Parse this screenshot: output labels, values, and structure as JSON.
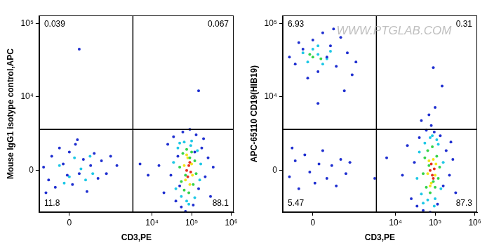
{
  "chart_data": [
    {
      "type": "scatter",
      "x_label": "CD3,PE",
      "y_label": "Mouse IgG1 isotype control,APC",
      "xlim": [
        -460,
        1150000
      ],
      "ylim": [
        -3400,
        130000
      ],
      "xticks": [
        0,
        {
          "value": 10000,
          "label": "10⁴"
        },
        {
          "value": 100000,
          "label": "10⁵"
        },
        {
          "value": 1000000,
          "label": "10⁶"
        }
      ],
      "yticks": [
        0,
        {
          "value": 10000,
          "label": "10⁴"
        },
        {
          "value": 100000,
          "label": "10⁵"
        }
      ],
      "grid": false,
      "gates": {
        "x": 3300,
        "y": 3300
      },
      "quadrant_percents": {
        "upper_left": 0.039,
        "upper_right": 0.067,
        "lower_left": 11.8,
        "lower_right": 88.1
      },
      "series": [
        {
          "color": "#1f2fd0",
          "points": [
            [
              -350,
              200
            ],
            [
              -250,
              -600
            ],
            [
              -200,
              900
            ],
            [
              -150,
              -1100
            ],
            [
              -100,
              1500
            ],
            [
              -60,
              400
            ],
            [
              -20,
              -300
            ],
            [
              0,
              1200
            ],
            [
              30,
              -900
            ],
            [
              60,
              1800
            ],
            [
              100,
              -200
            ],
            [
              150,
              700
            ],
            [
              200,
              -1400
            ],
            [
              260,
              300
            ],
            [
              330,
              1100
            ],
            [
              420,
              -500
            ],
            [
              520,
              600
            ],
            [
              700,
              -200
            ],
            [
              900,
              900
            ],
            [
              1300,
              300
            ],
            [
              -300,
              -1500
            ],
            [
              80,
              2200
            ],
            [
              15000,
              300
            ],
            [
              20000,
              -1500
            ],
            [
              25000,
              1800
            ],
            [
              30000,
              -300
            ],
            [
              35000,
              2500
            ],
            [
              40000,
              -2200
            ],
            [
              45000,
              900
            ],
            [
              55000,
              -2800
            ],
            [
              60000,
              3000
            ],
            [
              70000,
              -3300
            ],
            [
              90000,
              3300
            ],
            [
              110000,
              -2600
            ],
            [
              130000,
              2700
            ],
            [
              150000,
              -1200
            ],
            [
              180000,
              1500
            ],
            [
              220000,
              -400
            ],
            [
              260000,
              800
            ],
            [
              300000,
              -1800
            ],
            [
              350000,
              200
            ],
            [
              50000,
              -1000
            ],
            [
              120000,
              1200
            ],
            [
              200000,
              2300
            ],
            [
              5000,
              400
            ],
            [
              8000,
              -300
            ],
            [
              100,
              45000
            ],
            [
              150000,
              12000
            ]
          ]
        },
        {
          "color": "#1ec8e6",
          "points": [
            [
              -100,
              300
            ],
            [
              0,
              -400
            ],
            [
              50,
              800
            ],
            [
              120,
              100
            ],
            [
              180,
              -600
            ],
            [
              250,
              900
            ],
            [
              -50,
              -800
            ],
            [
              300,
              -200
            ],
            [
              35000,
              500
            ],
            [
              40000,
              -1200
            ],
            [
              45000,
              1500
            ],
            [
              55000,
              -1800
            ],
            [
              65000,
              2000
            ],
            [
              75000,
              -2200
            ],
            [
              100000,
              2100
            ],
            [
              120000,
              -1900
            ],
            [
              140000,
              1300
            ],
            [
              160000,
              -600
            ],
            [
              170000,
              400
            ],
            [
              50000,
              1900
            ],
            [
              85000,
              -2500
            ],
            [
              95000,
              1700
            ]
          ]
        },
        {
          "color": "#34d34a",
          "points": [
            [
              50000,
              200
            ],
            [
              55000,
              -700
            ],
            [
              60000,
              1100
            ],
            [
              65000,
              -1300
            ],
            [
              75000,
              1400
            ],
            [
              85000,
              -1500
            ],
            [
              100000,
              1200
            ],
            [
              110000,
              -900
            ],
            [
              120000,
              600
            ],
            [
              130000,
              -200
            ],
            [
              70000,
              -300
            ],
            [
              90000,
              800
            ]
          ]
        },
        {
          "color": "#f2e41a",
          "points": [
            [
              65000,
              300
            ],
            [
              70000,
              -600
            ],
            [
              80000,
              800
            ],
            [
              90000,
              -900
            ],
            [
              100000,
              400
            ],
            [
              75000,
              1000
            ],
            [
              105000,
              -300
            ]
          ]
        },
        {
          "color": "#e5301f",
          "points": [
            [
              75000,
              0
            ],
            [
              80000,
              -400
            ],
            [
              85000,
              300
            ],
            [
              95000,
              -100
            ],
            [
              90000,
              500
            ]
          ]
        }
      ]
    },
    {
      "type": "scatter",
      "x_label": "CD3,PE",
      "y_label": "APC-65110 CD19(HIB19)",
      "xlim": [
        -460,
        1150000
      ],
      "ylim": [
        -3400,
        130000
      ],
      "xticks": [
        0,
        {
          "value": 10000,
          "label": "10⁴"
        },
        {
          "value": 100000,
          "label": "10⁵"
        },
        {
          "value": 1000000,
          "label": "10⁶"
        }
      ],
      "yticks": [
        0,
        {
          "value": 10000,
          "label": "10⁴"
        },
        {
          "value": 100000,
          "label": "10⁵"
        }
      ],
      "grid": false,
      "gates": {
        "x": 3300,
        "y": 3300
      },
      "quadrant_percents": {
        "upper_left": 6.93,
        "upper_right": 0.31,
        "lower_left": 5.47,
        "lower_right": 87.3
      },
      "annotations": [
        "WWW.PTGLAB.COM"
      ],
      "series": [
        {
          "color": "#1f2fd0",
          "points": [
            [
              -300,
              -400
            ],
            [
              -200,
              600
            ],
            [
              -150,
              -1200
            ],
            [
              -80,
              1000
            ],
            [
              -30,
              -100
            ],
            [
              20,
              -800
            ],
            [
              60,
              400
            ],
            [
              100,
              1300
            ],
            [
              150,
              -500
            ],
            [
              220,
              300
            ],
            [
              300,
              -1000
            ],
            [
              400,
              700
            ],
            [
              550,
              -200
            ],
            [
              -250,
              1500
            ],
            [
              700,
              500
            ],
            [
              -200,
              28000
            ],
            [
              -100,
              45000
            ],
            [
              -50,
              18000
            ],
            [
              0,
              60000
            ],
            [
              50,
              22000
            ],
            [
              100,
              75000
            ],
            [
              150,
              35000
            ],
            [
              200,
              50000
            ],
            [
              300,
              26000
            ],
            [
              400,
              65000
            ],
            [
              600,
              40000
            ],
            [
              -300,
              35000
            ],
            [
              800,
              20000
            ],
            [
              250,
              85000
            ],
            [
              -150,
              55000
            ],
            [
              1000,
              30000
            ],
            [
              50,
              8000
            ],
            [
              500,
              12000
            ],
            [
              15000,
              -300
            ],
            [
              20000,
              1700
            ],
            [
              25000,
              -2000
            ],
            [
              30000,
              500
            ],
            [
              35000,
              -2700
            ],
            [
              40000,
              2400
            ],
            [
              50000,
              -3200
            ],
            [
              60000,
              3200
            ],
            [
              75000,
              -3400
            ],
            [
              95000,
              3000
            ],
            [
              115000,
              -2500
            ],
            [
              135000,
              2600
            ],
            [
              160000,
              -1000
            ],
            [
              190000,
              1300
            ],
            [
              230000,
              -300
            ],
            [
              280000,
              700
            ],
            [
              330000,
              -1500
            ],
            [
              45000,
              4500
            ],
            [
              70000,
              5500
            ],
            [
              100000,
              7000
            ],
            [
              80000,
              3800
            ],
            [
              250000,
              2000
            ],
            [
              150000,
              14000
            ],
            [
              90000,
              25000
            ],
            [
              3000,
              -500
            ],
            [
              6000,
              800
            ]
          ]
        },
        {
          "color": "#1ec8e6",
          "points": [
            [
              -50,
              30000
            ],
            [
              50,
              38000
            ],
            [
              100,
              28000
            ],
            [
              0,
              45000
            ],
            [
              150,
              33000
            ],
            [
              -100,
              40000
            ],
            [
              200,
              42000
            ],
            [
              50,
              50000
            ],
            [
              35000,
              -500
            ],
            [
              40000,
              1200
            ],
            [
              45000,
              -1600
            ],
            [
              55000,
              1900
            ],
            [
              65000,
              -2100
            ],
            [
              75000,
              2400
            ],
            [
              100000,
              -2000
            ],
            [
              120000,
              1800
            ],
            [
              140000,
              -1200
            ],
            [
              160000,
              500
            ],
            [
              50000,
              -2400
            ],
            [
              85000,
              2600
            ],
            [
              95000,
              -2700
            ],
            [
              110000,
              2200
            ]
          ]
        },
        {
          "color": "#34d34a",
          "points": [
            [
              0,
              35000
            ],
            [
              80,
              33000
            ],
            [
              -30,
              38000
            ],
            [
              50000,
              -200
            ],
            [
              55000,
              800
            ],
            [
              60000,
              -1100
            ],
            [
              65000,
              1300
            ],
            [
              75000,
              -1500
            ],
            [
              85000,
              1600
            ],
            [
              100000,
              -1100
            ],
            [
              110000,
              900
            ],
            [
              120000,
              -500
            ],
            [
              70000,
              300
            ],
            [
              90000,
              -700
            ],
            [
              130000,
              200
            ]
          ]
        },
        {
          "color": "#f2e41a",
          "points": [
            [
              65000,
              -200
            ],
            [
              70000,
              600
            ],
            [
              80000,
              -800
            ],
            [
              90000,
              700
            ],
            [
              100000,
              -300
            ],
            [
              75000,
              -1000
            ],
            [
              105000,
              400
            ]
          ]
        },
        {
          "color": "#e5301f",
          "points": [
            [
              75000,
              0
            ],
            [
              80000,
              400
            ],
            [
              85000,
              -300
            ],
            [
              95000,
              100
            ],
            [
              90000,
              -500
            ]
          ]
        }
      ]
    }
  ]
}
